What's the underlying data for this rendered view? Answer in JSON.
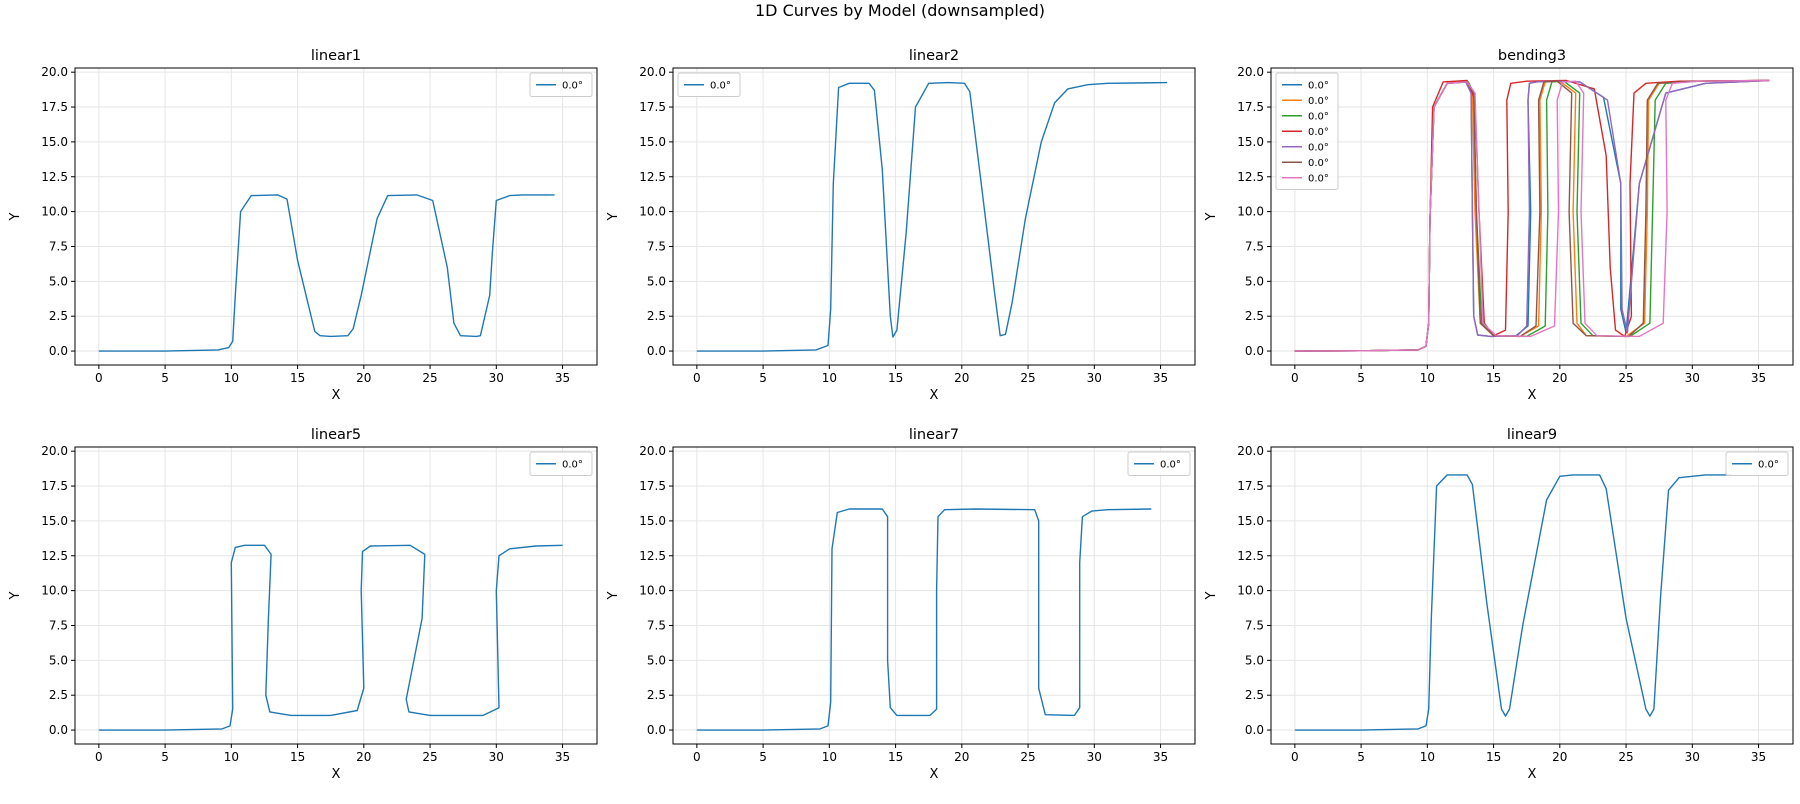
{
  "figure": {
    "title": "1D Curves by Model (downsampled)"
  },
  "chart_data": [
    {
      "type": "line",
      "title": "linear1",
      "xlabel": "X",
      "ylabel": "Y",
      "xlim": [
        -1.8,
        37.6
      ],
      "ylim": [
        -1.0,
        20.3
      ],
      "xticks": [
        0,
        5,
        10,
        15,
        20,
        25,
        30,
        35
      ],
      "yticks": [
        0.0,
        2.5,
        5.0,
        7.5,
        10.0,
        12.5,
        15.0,
        17.5,
        20.0
      ],
      "ytick_labels": [
        "0.0",
        "2.5",
        "5.0",
        "7.5",
        "10.0",
        "12.5",
        "15.0",
        "17.5",
        "20.0"
      ],
      "grid": true,
      "legend": "upper right",
      "series": [
        {
          "name": "0.0°",
          "color": "#1f77b4",
          "x": [
            0,
            5,
            9,
            9.8,
            10.1,
            10.3,
            10.7,
            11.5,
            13.5,
            14.2,
            15.0,
            16.3,
            16.7,
            17.5,
            18.8,
            19.2,
            19.8,
            21.0,
            21.8,
            24.0,
            25.2,
            26.3,
            26.8,
            27.3,
            28.5,
            28.8,
            29.5,
            29.7,
            30.0,
            31.0,
            32.0,
            34.4
          ],
          "y": [
            0,
            0,
            0.08,
            0.25,
            0.7,
            4.0,
            10.0,
            11.15,
            11.2,
            10.9,
            6.5,
            1.4,
            1.1,
            1.05,
            1.1,
            1.6,
            4.0,
            9.5,
            11.15,
            11.2,
            10.8,
            6.0,
            2.0,
            1.1,
            1.05,
            1.1,
            4.0,
            7.0,
            10.8,
            11.15,
            11.2,
            11.2
          ]
        }
      ]
    },
    {
      "type": "line",
      "title": "linear2",
      "xlabel": "X",
      "ylabel": "Y",
      "xlim": [
        -1.8,
        37.6
      ],
      "ylim": [
        -1.0,
        20.3
      ],
      "xticks": [
        0,
        5,
        10,
        15,
        20,
        25,
        30,
        35
      ],
      "yticks": [
        0.0,
        2.5,
        5.0,
        7.5,
        10.0,
        12.5,
        15.0,
        17.5,
        20.0
      ],
      "ytick_labels": [
        "0.0",
        "2.5",
        "5.0",
        "7.5",
        "10.0",
        "12.5",
        "15.0",
        "17.5",
        "20.0"
      ],
      "grid": true,
      "legend": "upper left",
      "series": [
        {
          "name": "0.0°",
          "color": "#1f77b4",
          "x": [
            0,
            5,
            9,
            9.9,
            10.1,
            10.3,
            10.7,
            11.5,
            13.0,
            13.4,
            14.0,
            14.6,
            14.8,
            15.1,
            15.8,
            16.5,
            17.5,
            19.0,
            20.2,
            20.6,
            21.4,
            22.5,
            22.9,
            23.3,
            23.8,
            24.8,
            26.0,
            27.0,
            28.0,
            29.5,
            31.0,
            35.5
          ],
          "y": [
            0,
            0,
            0.08,
            0.4,
            3.0,
            12.0,
            18.9,
            19.2,
            19.2,
            18.7,
            13.0,
            2.5,
            1.0,
            1.5,
            8.5,
            17.5,
            19.2,
            19.25,
            19.2,
            18.6,
            12.5,
            4.0,
            1.1,
            1.2,
            3.5,
            9.5,
            15.0,
            17.8,
            18.8,
            19.1,
            19.2,
            19.25
          ]
        }
      ]
    },
    {
      "type": "line",
      "title": "bending3",
      "xlabel": "X",
      "ylabel": "Y",
      "xlim": [
        -1.8,
        37.6
      ],
      "ylim": [
        -1.0,
        20.3
      ],
      "xticks": [
        0,
        5,
        10,
        15,
        20,
        25,
        30,
        35
      ],
      "yticks": [
        0.0,
        2.5,
        5.0,
        7.5,
        10.0,
        12.5,
        15.0,
        17.5,
        20.0
      ],
      "ytick_labels": [
        "0.0",
        "2.5",
        "5.0",
        "7.5",
        "10.0",
        "12.5",
        "15.0",
        "17.5",
        "20.0"
      ],
      "grid": true,
      "legend": "upper left",
      "series": [
        {
          "name": "0.0°",
          "color": "#1f77b4",
          "x": [
            0,
            5,
            9.3,
            9.9,
            10.1,
            10.2,
            10.5,
            11.5,
            12.9,
            13.3,
            13.4,
            13.5,
            13.8,
            14.8,
            16.7,
            17.6,
            17.8,
            17.6,
            17.7,
            18.2,
            19.5,
            21.5,
            23.3,
            24.6,
            24.6,
            25.0,
            26.0,
            28.0,
            31.0,
            35.8
          ],
          "y": [
            0,
            0.02,
            0.08,
            0.35,
            2.0,
            9.5,
            17.5,
            19.2,
            19.3,
            18.5,
            10.0,
            2.5,
            1.15,
            1.05,
            1.1,
            1.8,
            10.0,
            18.0,
            19.2,
            19.3,
            19.35,
            19.3,
            18.2,
            12.0,
            3.0,
            1.3,
            12.0,
            18.5,
            19.2,
            19.4
          ]
        },
        {
          "name": "0.0°",
          "color": "#ff7f0e",
          "x": [
            0,
            5,
            9.3,
            9.9,
            10.1,
            10.2,
            10.5,
            11.5,
            13.0,
            13.4,
            13.6,
            14.0,
            15.0,
            17.0,
            18.4,
            18.6,
            18.5,
            18.9,
            20.0,
            21.2,
            21.0,
            21.3,
            22.0,
            25.0,
            26.4,
            26.6,
            26.7,
            27.5,
            30.0,
            35.8
          ],
          "y": [
            0,
            0.02,
            0.08,
            0.35,
            2.0,
            9.5,
            17.5,
            19.2,
            19.3,
            18.5,
            10.0,
            2.0,
            1.1,
            1.05,
            1.8,
            10.0,
            18.0,
            19.3,
            19.35,
            18.5,
            10.0,
            2.0,
            1.1,
            1.05,
            2.0,
            10.0,
            18.0,
            19.2,
            19.35,
            19.4
          ]
        },
        {
          "name": "0.0°",
          "color": "#2ca02c",
          "x": [
            0,
            5,
            9.3,
            9.9,
            10.1,
            10.2,
            10.5,
            11.5,
            13.1,
            13.5,
            13.7,
            14.1,
            15.0,
            17.5,
            18.9,
            19.1,
            19.0,
            19.4,
            20.3,
            21.5,
            21.3,
            21.6,
            22.5,
            25.3,
            26.8,
            27.0,
            27.2,
            28.0,
            30.5,
            35.8
          ],
          "y": [
            0,
            0.02,
            0.08,
            0.35,
            2.0,
            9.5,
            17.5,
            19.2,
            19.3,
            18.5,
            10.0,
            2.0,
            1.1,
            1.05,
            1.8,
            10.0,
            18.0,
            19.3,
            19.35,
            18.5,
            10.0,
            2.0,
            1.1,
            1.05,
            2.0,
            10.0,
            18.0,
            19.2,
            19.35,
            19.4
          ]
        },
        {
          "name": "0.0°",
          "color": "#d62728",
          "x": [
            0,
            5,
            9.3,
            9.9,
            10.1,
            10.2,
            10.4,
            11.2,
            13.0,
            13.6,
            13.9,
            14.3,
            15.0,
            15.9,
            16.1,
            16.0,
            16.3,
            17.5,
            20.5,
            22.6,
            23.5,
            23.8,
            24.2,
            24.9,
            25.4,
            25.3,
            25.6,
            26.5,
            29.0,
            35.8
          ],
          "y": [
            0,
            0.02,
            0.08,
            0.35,
            2.0,
            9.5,
            17.5,
            19.3,
            19.4,
            18.0,
            10.0,
            2.0,
            1.1,
            1.5,
            10.0,
            18.0,
            19.2,
            19.35,
            19.4,
            18.8,
            14.0,
            6.0,
            1.5,
            1.05,
            2.5,
            12.0,
            18.5,
            19.2,
            19.35,
            19.4
          ]
        },
        {
          "name": "0.0°",
          "color": "#9467bd",
          "x": [
            0,
            5,
            9.3,
            9.9,
            10.1,
            10.2,
            10.5,
            11.5,
            12.9,
            13.3,
            13.4,
            13.5,
            13.8,
            14.8,
            16.8,
            17.5,
            17.7,
            17.6,
            17.7,
            18.2,
            19.5,
            21.5,
            23.6,
            24.6,
            24.7,
            25.1,
            26.0,
            28.0,
            31.0,
            35.8
          ],
          "y": [
            0,
            0.02,
            0.08,
            0.35,
            2.0,
            9.5,
            17.5,
            19.2,
            19.3,
            18.5,
            10.0,
            2.5,
            1.15,
            1.05,
            1.1,
            1.8,
            10.0,
            18.0,
            19.2,
            19.3,
            19.35,
            19.3,
            18.0,
            12.0,
            3.0,
            1.3,
            12.0,
            18.5,
            19.2,
            19.4
          ]
        },
        {
          "name": "0.0°",
          "color": "#8c564b",
          "x": [
            0,
            5,
            9.3,
            9.9,
            10.1,
            10.2,
            10.5,
            11.5,
            13.0,
            13.5,
            13.7,
            14.0,
            15.0,
            17.0,
            18.2,
            18.5,
            18.4,
            18.8,
            19.8,
            20.9,
            20.7,
            21.0,
            22.0,
            25.2,
            26.3,
            26.5,
            26.6,
            27.4,
            30.0,
            35.8
          ],
          "y": [
            0,
            0.02,
            0.08,
            0.35,
            2.0,
            9.5,
            17.5,
            19.2,
            19.3,
            18.5,
            10.0,
            2.0,
            1.1,
            1.05,
            1.8,
            10.0,
            18.0,
            19.3,
            19.35,
            18.5,
            10.0,
            2.0,
            1.1,
            1.05,
            2.0,
            10.0,
            18.0,
            19.2,
            19.35,
            19.4
          ]
        },
        {
          "name": "0.0°",
          "color": "#e377c2",
          "x": [
            0,
            5,
            9.3,
            9.9,
            10.1,
            10.2,
            10.5,
            11.5,
            13.0,
            13.6,
            13.9,
            14.2,
            15.2,
            17.8,
            19.6,
            19.9,
            19.8,
            20.2,
            21.2,
            21.8,
            21.6,
            21.9,
            22.8,
            26.0,
            27.8,
            28.1,
            28.0,
            28.5,
            30.5,
            35.8
          ],
          "y": [
            0,
            0.02,
            0.08,
            0.35,
            2.0,
            9.5,
            17.5,
            19.2,
            19.3,
            18.5,
            10.0,
            2.0,
            1.1,
            1.05,
            1.8,
            10.0,
            18.0,
            19.3,
            19.35,
            18.5,
            10.0,
            2.0,
            1.1,
            1.05,
            2.0,
            10.0,
            18.0,
            19.2,
            19.35,
            19.4
          ]
        }
      ]
    },
    {
      "type": "line",
      "title": "linear5",
      "xlabel": "X",
      "ylabel": "Y",
      "xlim": [
        -1.8,
        37.6
      ],
      "ylim": [
        -1.0,
        20.3
      ],
      "xticks": [
        0,
        5,
        10,
        15,
        20,
        25,
        30,
        35
      ],
      "yticks": [
        0.0,
        2.5,
        5.0,
        7.5,
        10.0,
        12.5,
        15.0,
        17.5,
        20.0
      ],
      "ytick_labels": [
        "0.0",
        "2.5",
        "5.0",
        "7.5",
        "10.0",
        "12.5",
        "15.0",
        "17.5",
        "20.0"
      ],
      "grid": true,
      "legend": "upper right",
      "series": [
        {
          "name": "0.0°",
          "color": "#1f77b4",
          "x": [
            0,
            5,
            9.3,
            9.9,
            10.1,
            10.0,
            10.3,
            11.0,
            12.5,
            13.0,
            12.8,
            12.6,
            12.9,
            14.5,
            17.5,
            19.5,
            20.0,
            19.8,
            19.9,
            20.5,
            23.5,
            24.6,
            24.4,
            23.2,
            23.4,
            25.0,
            29.0,
            30.2,
            30.0,
            30.2,
            31.0,
            33.0,
            35.0
          ],
          "y": [
            0,
            0,
            0.08,
            0.3,
            1.5,
            12.0,
            13.1,
            13.25,
            13.25,
            12.6,
            8.0,
            2.5,
            1.3,
            1.05,
            1.05,
            1.4,
            3.0,
            10.0,
            12.8,
            13.2,
            13.25,
            12.6,
            8.0,
            2.2,
            1.3,
            1.05,
            1.05,
            1.6,
            10.0,
            12.5,
            13.0,
            13.2,
            13.25
          ]
        }
      ]
    },
    {
      "type": "line",
      "title": "linear7",
      "xlabel": "X",
      "ylabel": "Y",
      "xlim": [
        -1.8,
        37.6
      ],
      "ylim": [
        -1.0,
        20.3
      ],
      "xticks": [
        0,
        5,
        10,
        15,
        20,
        25,
        30,
        35
      ],
      "yticks": [
        0.0,
        2.5,
        5.0,
        7.5,
        10.0,
        12.5,
        15.0,
        17.5,
        20.0
      ],
      "ytick_labels": [
        "0.0",
        "2.5",
        "5.0",
        "7.5",
        "10.0",
        "12.5",
        "15.0",
        "17.5",
        "20.0"
      ],
      "grid": true,
      "legend": "upper right",
      "series": [
        {
          "name": "0.0°",
          "color": "#1f77b4",
          "x": [
            0,
            5,
            9.3,
            9.9,
            10.1,
            10.2,
            10.6,
            11.5,
            14.0,
            14.4,
            14.4,
            14.6,
            15.1,
            17.6,
            18.1,
            18.1,
            18.2,
            18.7,
            21.0,
            25.5,
            25.8,
            25.8,
            26.3,
            28.5,
            28.9,
            28.9,
            29.1,
            29.8,
            31.0,
            34.3
          ],
          "y": [
            0,
            0,
            0.08,
            0.3,
            2.0,
            13.0,
            15.6,
            15.85,
            15.85,
            15.3,
            5.0,
            1.6,
            1.05,
            1.05,
            1.5,
            10.0,
            15.3,
            15.8,
            15.85,
            15.8,
            15.0,
            3.0,
            1.1,
            1.05,
            1.6,
            12.0,
            15.3,
            15.7,
            15.8,
            15.85
          ]
        }
      ]
    },
    {
      "type": "line",
      "title": "linear9",
      "xlabel": "X",
      "ylabel": "Y",
      "xlim": [
        -1.8,
        37.6
      ],
      "ylim": [
        -1.0,
        20.3
      ],
      "xticks": [
        0,
        5,
        10,
        15,
        20,
        25,
        30,
        35
      ],
      "yticks": [
        0.0,
        2.5,
        5.0,
        7.5,
        10.0,
        12.5,
        15.0,
        17.5,
        20.0
      ],
      "ytick_labels": [
        "0.0",
        "2.5",
        "5.0",
        "7.5",
        "10.0",
        "12.5",
        "15.0",
        "17.5",
        "20.0"
      ],
      "grid": true,
      "legend": "upper right",
      "series": [
        {
          "name": "0.0°",
          "color": "#1f77b4",
          "x": [
            0,
            5,
            9.3,
            9.9,
            10.1,
            10.3,
            10.7,
            11.5,
            13.0,
            13.4,
            14.5,
            15.6,
            15.9,
            16.2,
            17.2,
            19.0,
            20.0,
            21.0,
            23.0,
            23.5,
            25.0,
            26.5,
            26.8,
            27.1,
            27.6,
            28.2,
            29.0,
            31.0,
            33.0
          ],
          "y": [
            0,
            0,
            0.08,
            0.3,
            1.5,
            8.0,
            17.5,
            18.3,
            18.3,
            17.6,
            9.0,
            1.5,
            1.0,
            1.5,
            7.5,
            16.5,
            18.2,
            18.3,
            18.3,
            17.3,
            8.0,
            1.5,
            1.0,
            1.5,
            9.5,
            17.2,
            18.1,
            18.3,
            18.3
          ]
        }
      ]
    }
  ]
}
